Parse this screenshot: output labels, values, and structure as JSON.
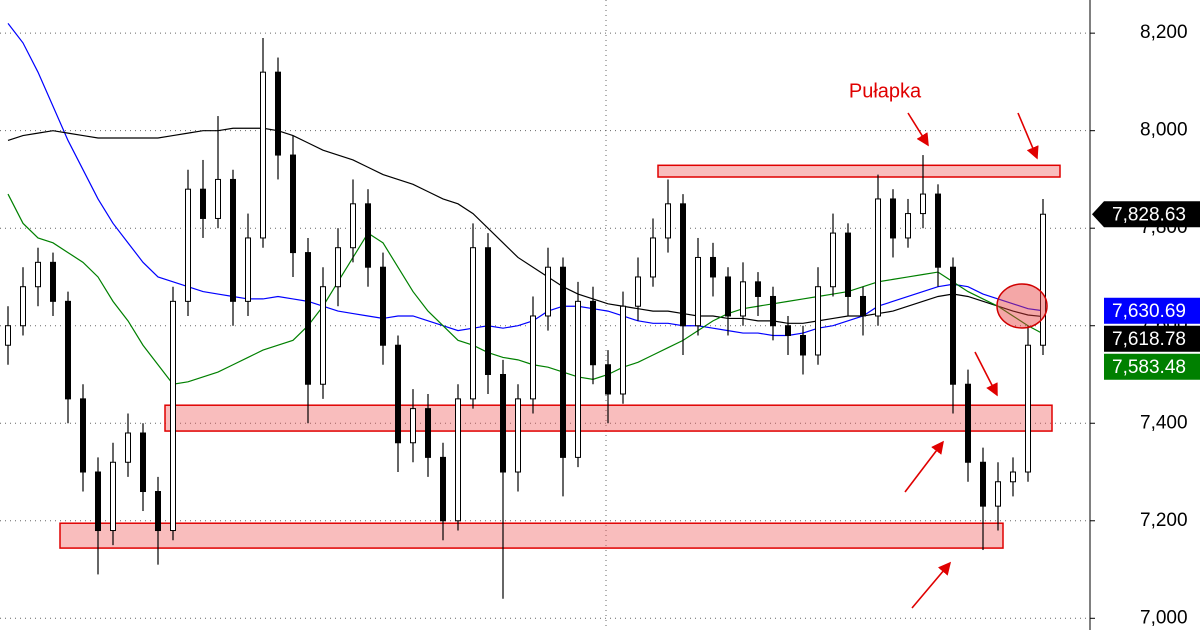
{
  "chart_data": {
    "type": "candlestick",
    "annotation": "Pułapka",
    "ylim": [
      6976,
      8268
    ],
    "yticks": [
      {
        "value": 7000,
        "label": "7,000"
      },
      {
        "value": 7200,
        "label": "7,200"
      },
      {
        "value": 7400,
        "label": "7,400"
      },
      {
        "value": 7600,
        "label": "7,600"
      },
      {
        "value": 7800,
        "label": "7,800"
      },
      {
        "value": 8000,
        "label": "8,000"
      },
      {
        "value": 8200,
        "label": "8,200"
      }
    ],
    "grid": true,
    "up_color": "#ffffff",
    "down_color": "#000000",
    "open": [
      7560,
      7600,
      7680,
      7730,
      7650,
      7450,
      7300,
      7180,
      7320,
      7380,
      7260,
      7180,
      7650,
      7880,
      7820,
      7900,
      7650,
      7780,
      8120,
      7950,
      7750,
      7480,
      7680,
      7760,
      7850,
      7720,
      7560,
      7360,
      7430,
      7330,
      7200,
      7450,
      7760,
      7500,
      7300,
      7450,
      7620,
      7720,
      7330,
      7650,
      7520,
      7460,
      7640,
      7700,
      7780,
      7850,
      7600,
      7740,
      7700,
      7620,
      7690,
      7660,
      7600,
      7580,
      7540,
      7680,
      7790,
      7660,
      7620,
      7860,
      7780,
      7830,
      7870,
      7720,
      7480,
      7320,
      7230,
      7280,
      7300,
      7560
    ],
    "high": [
      7640,
      7720,
      7760,
      7750,
      7670,
      7480,
      7330,
      7360,
      7420,
      7400,
      7290,
      7680,
      7920,
      7940,
      8030,
      7920,
      7830,
      8190,
      8150,
      7990,
      7780,
      7720,
      7800,
      7900,
      7880,
      7750,
      7580,
      7470,
      7460,
      7360,
      7480,
      7810,
      7790,
      7530,
      7480,
      7660,
      7760,
      7740,
      7690,
      7680,
      7550,
      7670,
      7740,
      7820,
      7900,
      7870,
      7780,
      7770,
      7720,
      7730,
      7710,
      7680,
      7620,
      7600,
      7720,
      7830,
      7810,
      7680,
      7910,
      7880,
      7860,
      7950,
      7890,
      7740,
      7510,
      7350,
      7320,
      7330,
      7600,
      7860
    ],
    "low": [
      7520,
      7580,
      7640,
      7620,
      7400,
      7260,
      7090,
      7150,
      7290,
      7220,
      7110,
      7160,
      7620,
      7780,
      7800,
      7600,
      7620,
      7760,
      7900,
      7700,
      7400,
      7450,
      7640,
      7730,
      7680,
      7520,
      7300,
      7320,
      7290,
      7160,
      7180,
      7430,
      7460,
      7040,
      7260,
      7420,
      7590,
      7250,
      7310,
      7480,
      7400,
      7440,
      7610,
      7680,
      7750,
      7540,
      7580,
      7660,
      7580,
      7600,
      7620,
      7570,
      7540,
      7500,
      7520,
      7660,
      7620,
      7580,
      7600,
      7740,
      7760,
      7800,
      7680,
      7420,
      7280,
      7140,
      7180,
      7250,
      7280,
      7540
    ],
    "close": [
      7600,
      7680,
      7730,
      7650,
      7450,
      7300,
      7180,
      7320,
      7380,
      7260,
      7180,
      7650,
      7880,
      7820,
      7900,
      7650,
      7780,
      8120,
      7950,
      7750,
      7480,
      7680,
      7760,
      7850,
      7720,
      7560,
      7360,
      7430,
      7330,
      7200,
      7450,
      7760,
      7500,
      7300,
      7450,
      7620,
      7720,
      7330,
      7650,
      7520,
      7460,
      7640,
      7700,
      7780,
      7850,
      7600,
      7740,
      7700,
      7620,
      7690,
      7660,
      7600,
      7580,
      7540,
      7680,
      7790,
      7660,
      7620,
      7860,
      7780,
      7830,
      7870,
      7720,
      7480,
      7320,
      7230,
      7280,
      7300,
      7560,
      7828.63
    ],
    "close_label": "7,828.63",
    "series": [
      {
        "color": "#0000ff",
        "value_label": "7,630.69",
        "values": [
          8220,
          8180,
          8120,
          8050,
          7980,
          7920,
          7860,
          7810,
          7770,
          7730,
          7700,
          7690,
          7680,
          7670,
          7665,
          7660,
          7655,
          7655,
          7660,
          7655,
          7650,
          7640,
          7630,
          7625,
          7620,
          7615,
          7620,
          7620,
          7610,
          7600,
          7590,
          7595,
          7600,
          7595,
          7600,
          7610,
          7630,
          7640,
          7640,
          7635,
          7630,
          7620,
          7610,
          7605,
          7605,
          7600,
          7600,
          7595,
          7590,
          7585,
          7585,
          7580,
          7580,
          7585,
          7595,
          7600,
          7610,
          7620,
          7640,
          7650,
          7660,
          7670,
          7680,
          7685,
          7680,
          7665,
          7655,
          7645,
          7635,
          7630.69
        ]
      },
      {
        "color": "#000000",
        "value_label": "7,618.78",
        "values": [
          7980,
          7990,
          7995,
          8000,
          7995,
          7990,
          7985,
          7985,
          7985,
          7985,
          7985,
          7990,
          7995,
          8000,
          8000,
          8005,
          8005,
          8005,
          8000,
          7990,
          7975,
          7960,
          7950,
          7940,
          7925,
          7910,
          7900,
          7890,
          7875,
          7860,
          7850,
          7830,
          7800,
          7770,
          7740,
          7720,
          7700,
          7680,
          7665,
          7655,
          7645,
          7640,
          7635,
          7630,
          7630,
          7625,
          7620,
          7620,
          7615,
          7615,
          7610,
          7610,
          7605,
          7605,
          7610,
          7615,
          7620,
          7620,
          7625,
          7630,
          7640,
          7650,
          7660,
          7665,
          7660,
          7650,
          7640,
          7630,
          7622,
          7618.78
        ]
      },
      {
        "color": "#008000",
        "value_label": "7,583.48",
        "values": [
          7870,
          7810,
          7780,
          7770,
          7750,
          7730,
          7700,
          7650,
          7610,
          7560,
          7520,
          7480,
          7485,
          7495,
          7505,
          7520,
          7535,
          7550,
          7560,
          7570,
          7600,
          7640,
          7690,
          7740,
          7790,
          7770,
          7720,
          7670,
          7630,
          7600,
          7570,
          7560,
          7545,
          7535,
          7530,
          7520,
          7515,
          7505,
          7495,
          7490,
          7500,
          7515,
          7525,
          7540,
          7555,
          7570,
          7590,
          7610,
          7625,
          7635,
          7640,
          7645,
          7650,
          7655,
          7660,
          7665,
          7670,
          7680,
          7690,
          7695,
          7700,
          7705,
          7710,
          7690,
          7670,
          7655,
          7640,
          7620,
          7600,
          7583.48
        ]
      }
    ],
    "zones": [
      {
        "low": 7905,
        "high": 7929
      },
      {
        "low": 7384,
        "high": 7437
      },
      {
        "low": 7144,
        "high": 7195
      }
    ]
  }
}
